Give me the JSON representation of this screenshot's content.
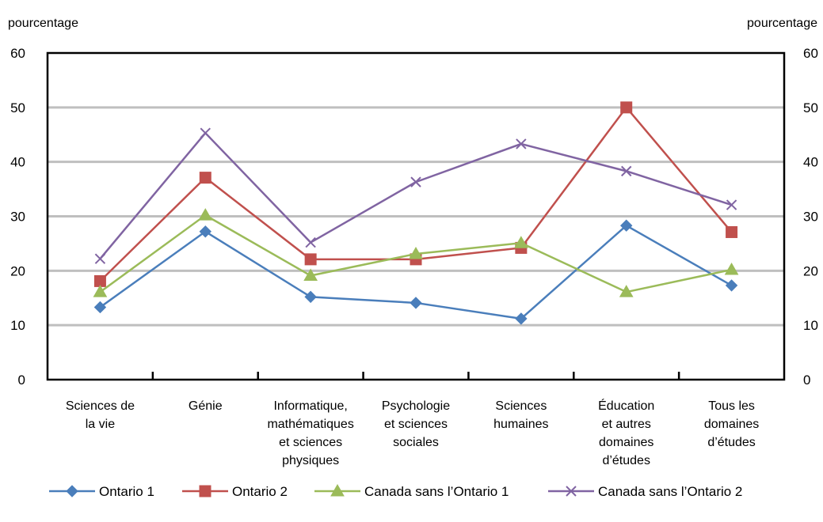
{
  "chart_data": {
    "type": "line",
    "left_axis_label": "pourcentage",
    "right_axis_label": "pourcentage",
    "ylim": [
      0,
      60
    ],
    "y_ticks": [
      "0",
      "10",
      "20",
      "30",
      "40",
      "50",
      "60"
    ],
    "grid": "horizontal",
    "legend_position": "bottom",
    "categories": [
      [
        "Sciences de",
        "la vie"
      ],
      [
        "Génie"
      ],
      [
        "Informatique,",
        "mathématiques",
        "et sciences",
        "physiques"
      ],
      [
        "Psychologie",
        "et sciences",
        "sociales"
      ],
      [
        "Sciences",
        "humaines"
      ],
      [
        "Éducation",
        "et autres",
        "domaines",
        "d’études"
      ],
      [
        "Tous les",
        "domaines",
        "d’études"
      ]
    ],
    "series": [
      {
        "name": "Ontario 1",
        "color": "#4A7EBB",
        "marker": "diamond",
        "values": [
          13.3,
          27.2,
          15.2,
          14.1,
          11.2,
          28.3,
          17.3
        ]
      },
      {
        "name": "Ontario 2",
        "color": "#C0504D",
        "marker": "square",
        "values": [
          18.1,
          37.1,
          22.1,
          22.1,
          24.2,
          50.0,
          27.1
        ]
      },
      {
        "name": "Canada sans l’Ontario 1",
        "color": "#9BBB59",
        "marker": "triangle",
        "values": [
          16.1,
          30.2,
          19.1,
          23.1,
          25.1,
          16.1,
          20.2
        ]
      },
      {
        "name": "Canada sans l’Ontario 2",
        "color": "#8064A2",
        "marker": "x",
        "values": [
          22.2,
          45.3,
          25.2,
          36.3,
          43.3,
          38.3,
          32.1
        ]
      }
    ]
  }
}
